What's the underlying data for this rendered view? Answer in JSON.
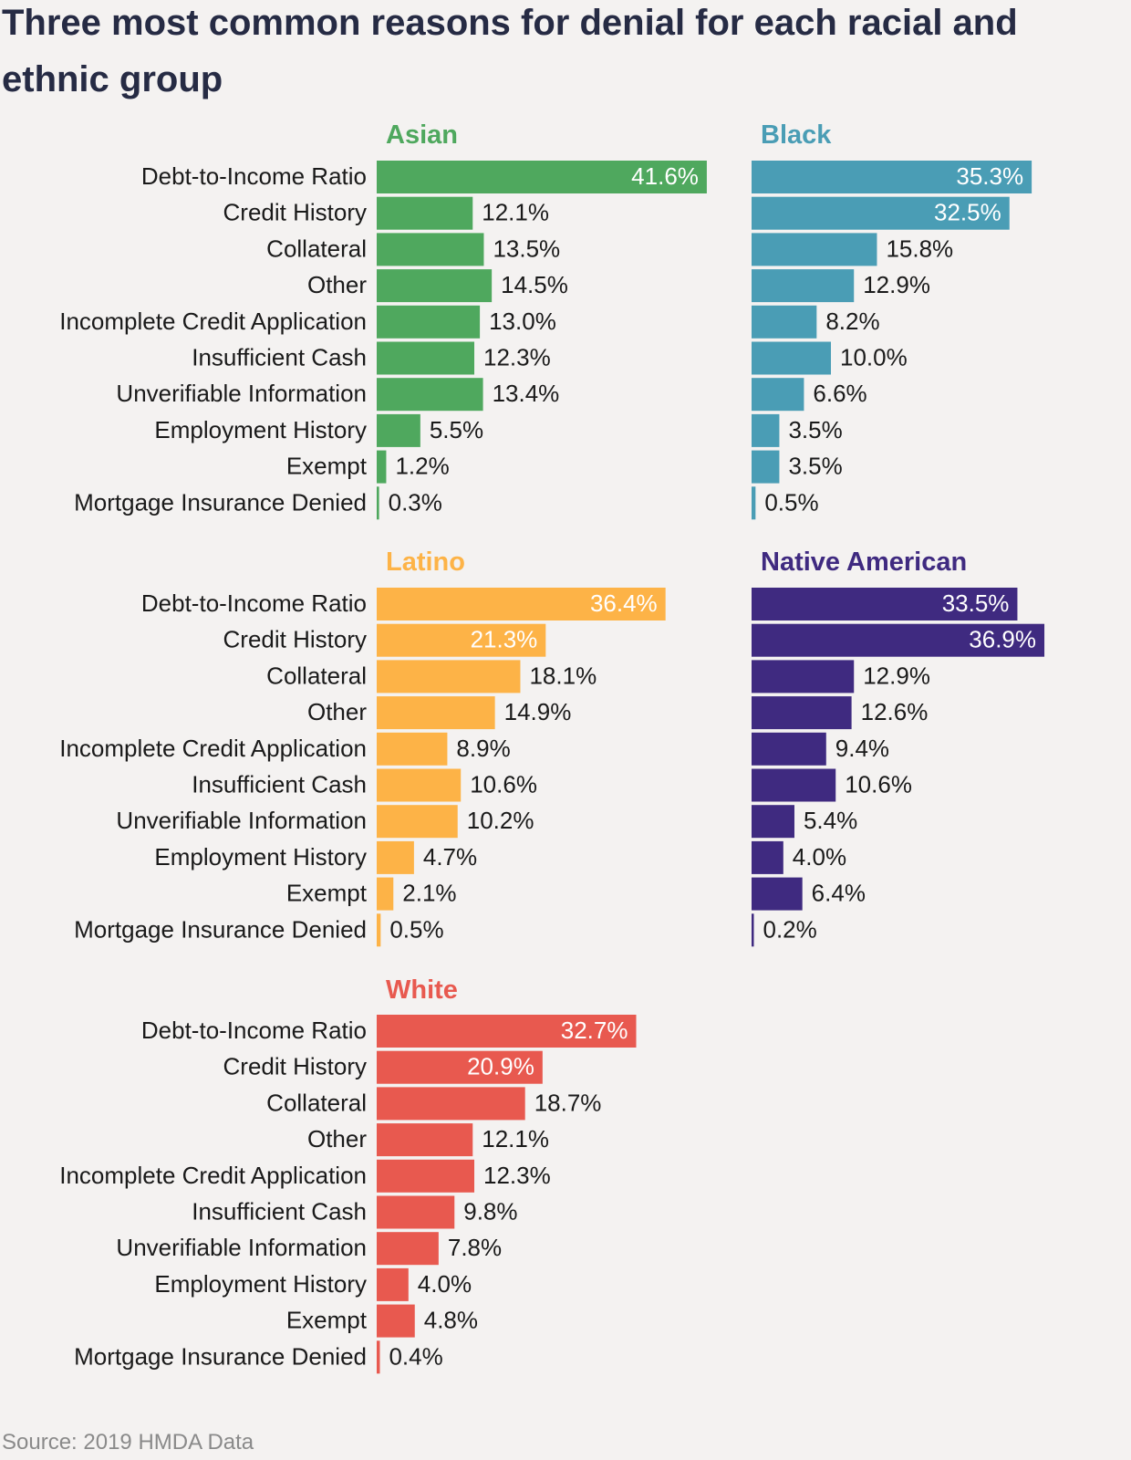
{
  "title": "Three most common reasons for denial for each racial and ethnic group",
  "source": "Source: 2019 HMDA Data",
  "chart_data": {
    "type": "bar",
    "orientation": "horizontal",
    "categories": [
      "Debt-to-Income Ratio",
      "Credit History",
      "Collateral",
      "Other",
      "Incomplete Credit Application",
      "Insufficient Cash",
      "Unverifiable Information",
      "Employment History",
      "Exempt",
      "Mortgage Insurance Denied"
    ],
    "value_suffix": "%",
    "series": [
      {
        "name": "Asian",
        "color": "#4fa85e",
        "values": [
          41.6,
          12.1,
          13.5,
          14.5,
          13.0,
          12.3,
          13.4,
          5.5,
          1.2,
          0.3
        ],
        "labels_inside": [
          0
        ]
      },
      {
        "name": "Black",
        "color": "#4a9db5",
        "values": [
          35.3,
          32.5,
          15.8,
          12.9,
          8.2,
          10.0,
          6.6,
          3.5,
          3.5,
          0.5
        ],
        "labels_inside": [
          0,
          1
        ]
      },
      {
        "name": "Latino",
        "color": "#fdb347",
        "values": [
          36.4,
          21.3,
          18.1,
          14.9,
          8.9,
          10.6,
          10.2,
          4.7,
          2.1,
          0.5
        ],
        "labels_inside": [
          0,
          1
        ]
      },
      {
        "name": "Native American",
        "color": "#3f2a80",
        "values": [
          33.5,
          36.9,
          12.9,
          12.6,
          9.4,
          10.6,
          5.4,
          4.0,
          6.4,
          0.2
        ],
        "labels_inside": [
          0,
          1
        ]
      },
      {
        "name": "White",
        "color": "#e8594f",
        "values": [
          32.7,
          20.9,
          18.7,
          12.1,
          12.3,
          9.8,
          7.8,
          4.0,
          4.8,
          0.4
        ],
        "labels_inside": [
          0,
          1
        ]
      }
    ]
  }
}
